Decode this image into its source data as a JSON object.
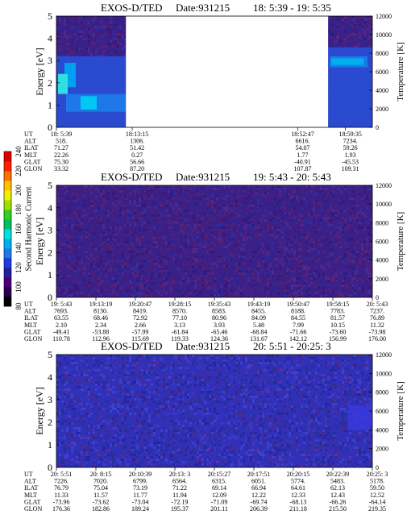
{
  "colorbar": {
    "title": "Second Harmonic Current",
    "ticks": [
      "80",
      "100",
      "120",
      "140",
      "160",
      "180",
      "200",
      "220",
      "240"
    ],
    "colors": [
      "#000000",
      "#2a0050",
      "#4b007a",
      "#2020a0",
      "#1e3ce0",
      "#1e7ae8",
      "#00b0ee",
      "#00e0e0",
      "#00c060",
      "#30d020",
      "#a0e000",
      "#f0f000",
      "#ffc000",
      "#ff7000",
      "#ff2000",
      "#e00000"
    ]
  },
  "chart_data": [
    {
      "type": "heatmap",
      "title": "EXOS-D/TED",
      "date": "Date:931215",
      "time_range": "18: 5:39 - 19: 5:35",
      "ylabel": "Energy [eV]",
      "ylabel_right": "Temperature [K]",
      "ylim": [
        0,
        5
      ],
      "ylim_right": [
        0,
        12000
      ],
      "yticks": [
        "0",
        "1",
        "2",
        "3",
        "4",
        "5"
      ],
      "yticks_right": [
        "0",
        "2000",
        "4000",
        "6000",
        "8000",
        "10000",
        "12000"
      ],
      "data_gap": [
        0.22,
        0.86
      ],
      "row_labels": [
        "UT",
        "ALT",
        "ILAT",
        "MLT",
        "GLAT",
        "GLON"
      ],
      "columns": [
        {
          "pos": 0.0,
          "values": [
            "18: 5:39",
            "518.",
            "71.27",
            "22.26",
            "75.30",
            "33.32"
          ]
        },
        {
          "pos": 0.24,
          "values": [
            "18:13:15",
            "1306.",
            "51.42",
            "0.27",
            "56.66",
            "87.20"
          ]
        },
        {
          "pos": 0.764,
          "values": [
            "18:52:47",
            "6616.",
            "54.07",
            "1.77",
            "-40.91",
            "107.87"
          ]
        },
        {
          "pos": 0.915,
          "values": [
            "18:59:35",
            "7234.",
            "59.26",
            "1.93",
            "-45.53",
            "109.31"
          ]
        }
      ]
    },
    {
      "type": "heatmap",
      "title": "EXOS-D/TED",
      "date": "Date:931215",
      "time_range": "19: 5:43 - 20: 5:43",
      "ylabel": "Energy [eV]",
      "ylabel_right": "Temperature [K]",
      "ylim": [
        0,
        5
      ],
      "ylim_right": [
        0,
        12000
      ],
      "yticks": [
        "0",
        "1",
        "2",
        "3",
        "4",
        "5"
      ],
      "yticks_right": [
        "0",
        "2000",
        "4000",
        "6000",
        "8000",
        "10000",
        "12000"
      ],
      "row_labels": [
        "UT",
        "ALT",
        "ILAT",
        "MLT",
        "GLAT",
        "GLON"
      ],
      "columns": [
        {
          "pos": 0.0,
          "values": [
            "19: 5:43",
            "7693.",
            "63.55",
            "2.10",
            "-49.41",
            "110.78"
          ]
        },
        {
          "pos": 0.125,
          "values": [
            "19:13:19",
            "8130.",
            "68.46",
            "2.34",
            "-53.88",
            "112.96"
          ]
        },
        {
          "pos": 0.25,
          "values": [
            "19:20:47",
            "8419.",
            "72.92",
            "2.66",
            "-57.99",
            "115.69"
          ]
        },
        {
          "pos": 0.375,
          "values": [
            "19:28:15",
            "8570.",
            "77.10",
            "3.13",
            "-61.84",
            "119.33"
          ]
        },
        {
          "pos": 0.5,
          "values": [
            "19:35:43",
            "8583.",
            "80.96",
            "3.93",
            "-65.46",
            "124.36"
          ]
        },
        {
          "pos": 0.625,
          "values": [
            "19:43:19",
            "8455.",
            "84.09",
            "5.48",
            "-68.84",
            "131.67"
          ]
        },
        {
          "pos": 0.75,
          "values": [
            "19:50:47",
            "8188.",
            "84.55",
            "7.99",
            "-71.66",
            "142.12"
          ]
        },
        {
          "pos": 0.875,
          "values": [
            "19:58:15",
            "7783.",
            "81.57",
            "10.15",
            "-73.60",
            "156.99"
          ]
        },
        {
          "pos": 1.0,
          "values": [
            "20: 5:43",
            "7237.",
            "76.89",
            "11.32",
            "-73.98",
            "176.00"
          ]
        }
      ]
    },
    {
      "type": "heatmap",
      "title": "EXOS-D/TED",
      "date": "Date:931215",
      "time_range": "20: 5:51 - 20:25: 3",
      "ylabel": "Energy [eV]",
      "ylabel_right": "Temperature [K]",
      "ylim": [
        0,
        5
      ],
      "ylim_right": [
        0,
        12000
      ],
      "yticks": [
        "0",
        "1",
        "2",
        "3",
        "4",
        "5"
      ],
      "yticks_right": [
        "0",
        "2000",
        "4000",
        "6000",
        "8000",
        "10000",
        "12000"
      ],
      "row_labels": [
        "UT",
        "ALT",
        "ILAT",
        "MLT",
        "GLAT",
        "GLON"
      ],
      "columns": [
        {
          "pos": 0.0,
          "values": [
            "20: 5:51",
            "7226.",
            "76.79",
            "11.33",
            "-73.96",
            "176.36"
          ]
        },
        {
          "pos": 0.125,
          "values": [
            "20: 8:15",
            "7020.",
            "75.04",
            "11.57",
            "-73.62",
            "182.86"
          ]
        },
        {
          "pos": 0.25,
          "values": [
            "20:10:39",
            "6799.",
            "73.19",
            "11.77",
            "-73.04",
            "189.24"
          ]
        },
        {
          "pos": 0.375,
          "values": [
            "20:13: 3",
            "6564.",
            "71.22",
            "11.94",
            "-72.19",
            "195.37"
          ]
        },
        {
          "pos": 0.5,
          "values": [
            "20:15:27",
            "6315.",
            "69.14",
            "12.09",
            "-71.09",
            "201.11"
          ]
        },
        {
          "pos": 0.625,
          "values": [
            "20:17:51",
            "6051.",
            "66.94",
            "12.22",
            "-69.74",
            "206.39"
          ]
        },
        {
          "pos": 0.75,
          "values": [
            "20:20:15",
            "5774.",
            "64.61",
            "12.33",
            "-68.13",
            "211.18"
          ]
        },
        {
          "pos": 0.875,
          "values": [
            "20:22:39",
            "5483.",
            "62.13",
            "12.43",
            "-66.26",
            "215.50"
          ]
        },
        {
          "pos": 1.0,
          "values": [
            "20:25: 3",
            "5178.",
            "59.50",
            "12.52",
            "-64.14",
            "219.35"
          ]
        }
      ]
    }
  ]
}
